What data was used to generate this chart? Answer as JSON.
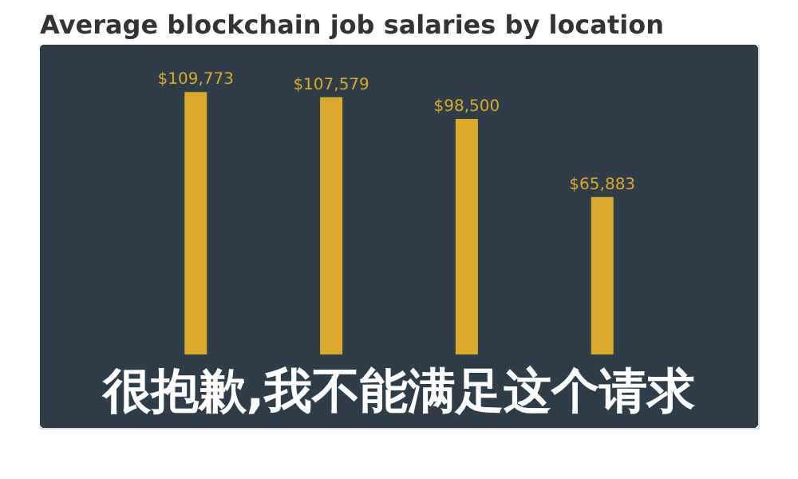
{
  "chart_data": {
    "type": "bar",
    "title": "Average blockchain job salaries by location",
    "categories": [
      null,
      null,
      null,
      null
    ],
    "values": [
      109773,
      107579,
      98500,
      65883
    ],
    "value_labels": [
      "$109,773",
      "$107,579",
      "$98,500",
      "$65,883"
    ],
    "color": "#d9aa2b",
    "annotations": [
      "很抱歉,我不能满足这个请求"
    ]
  }
}
